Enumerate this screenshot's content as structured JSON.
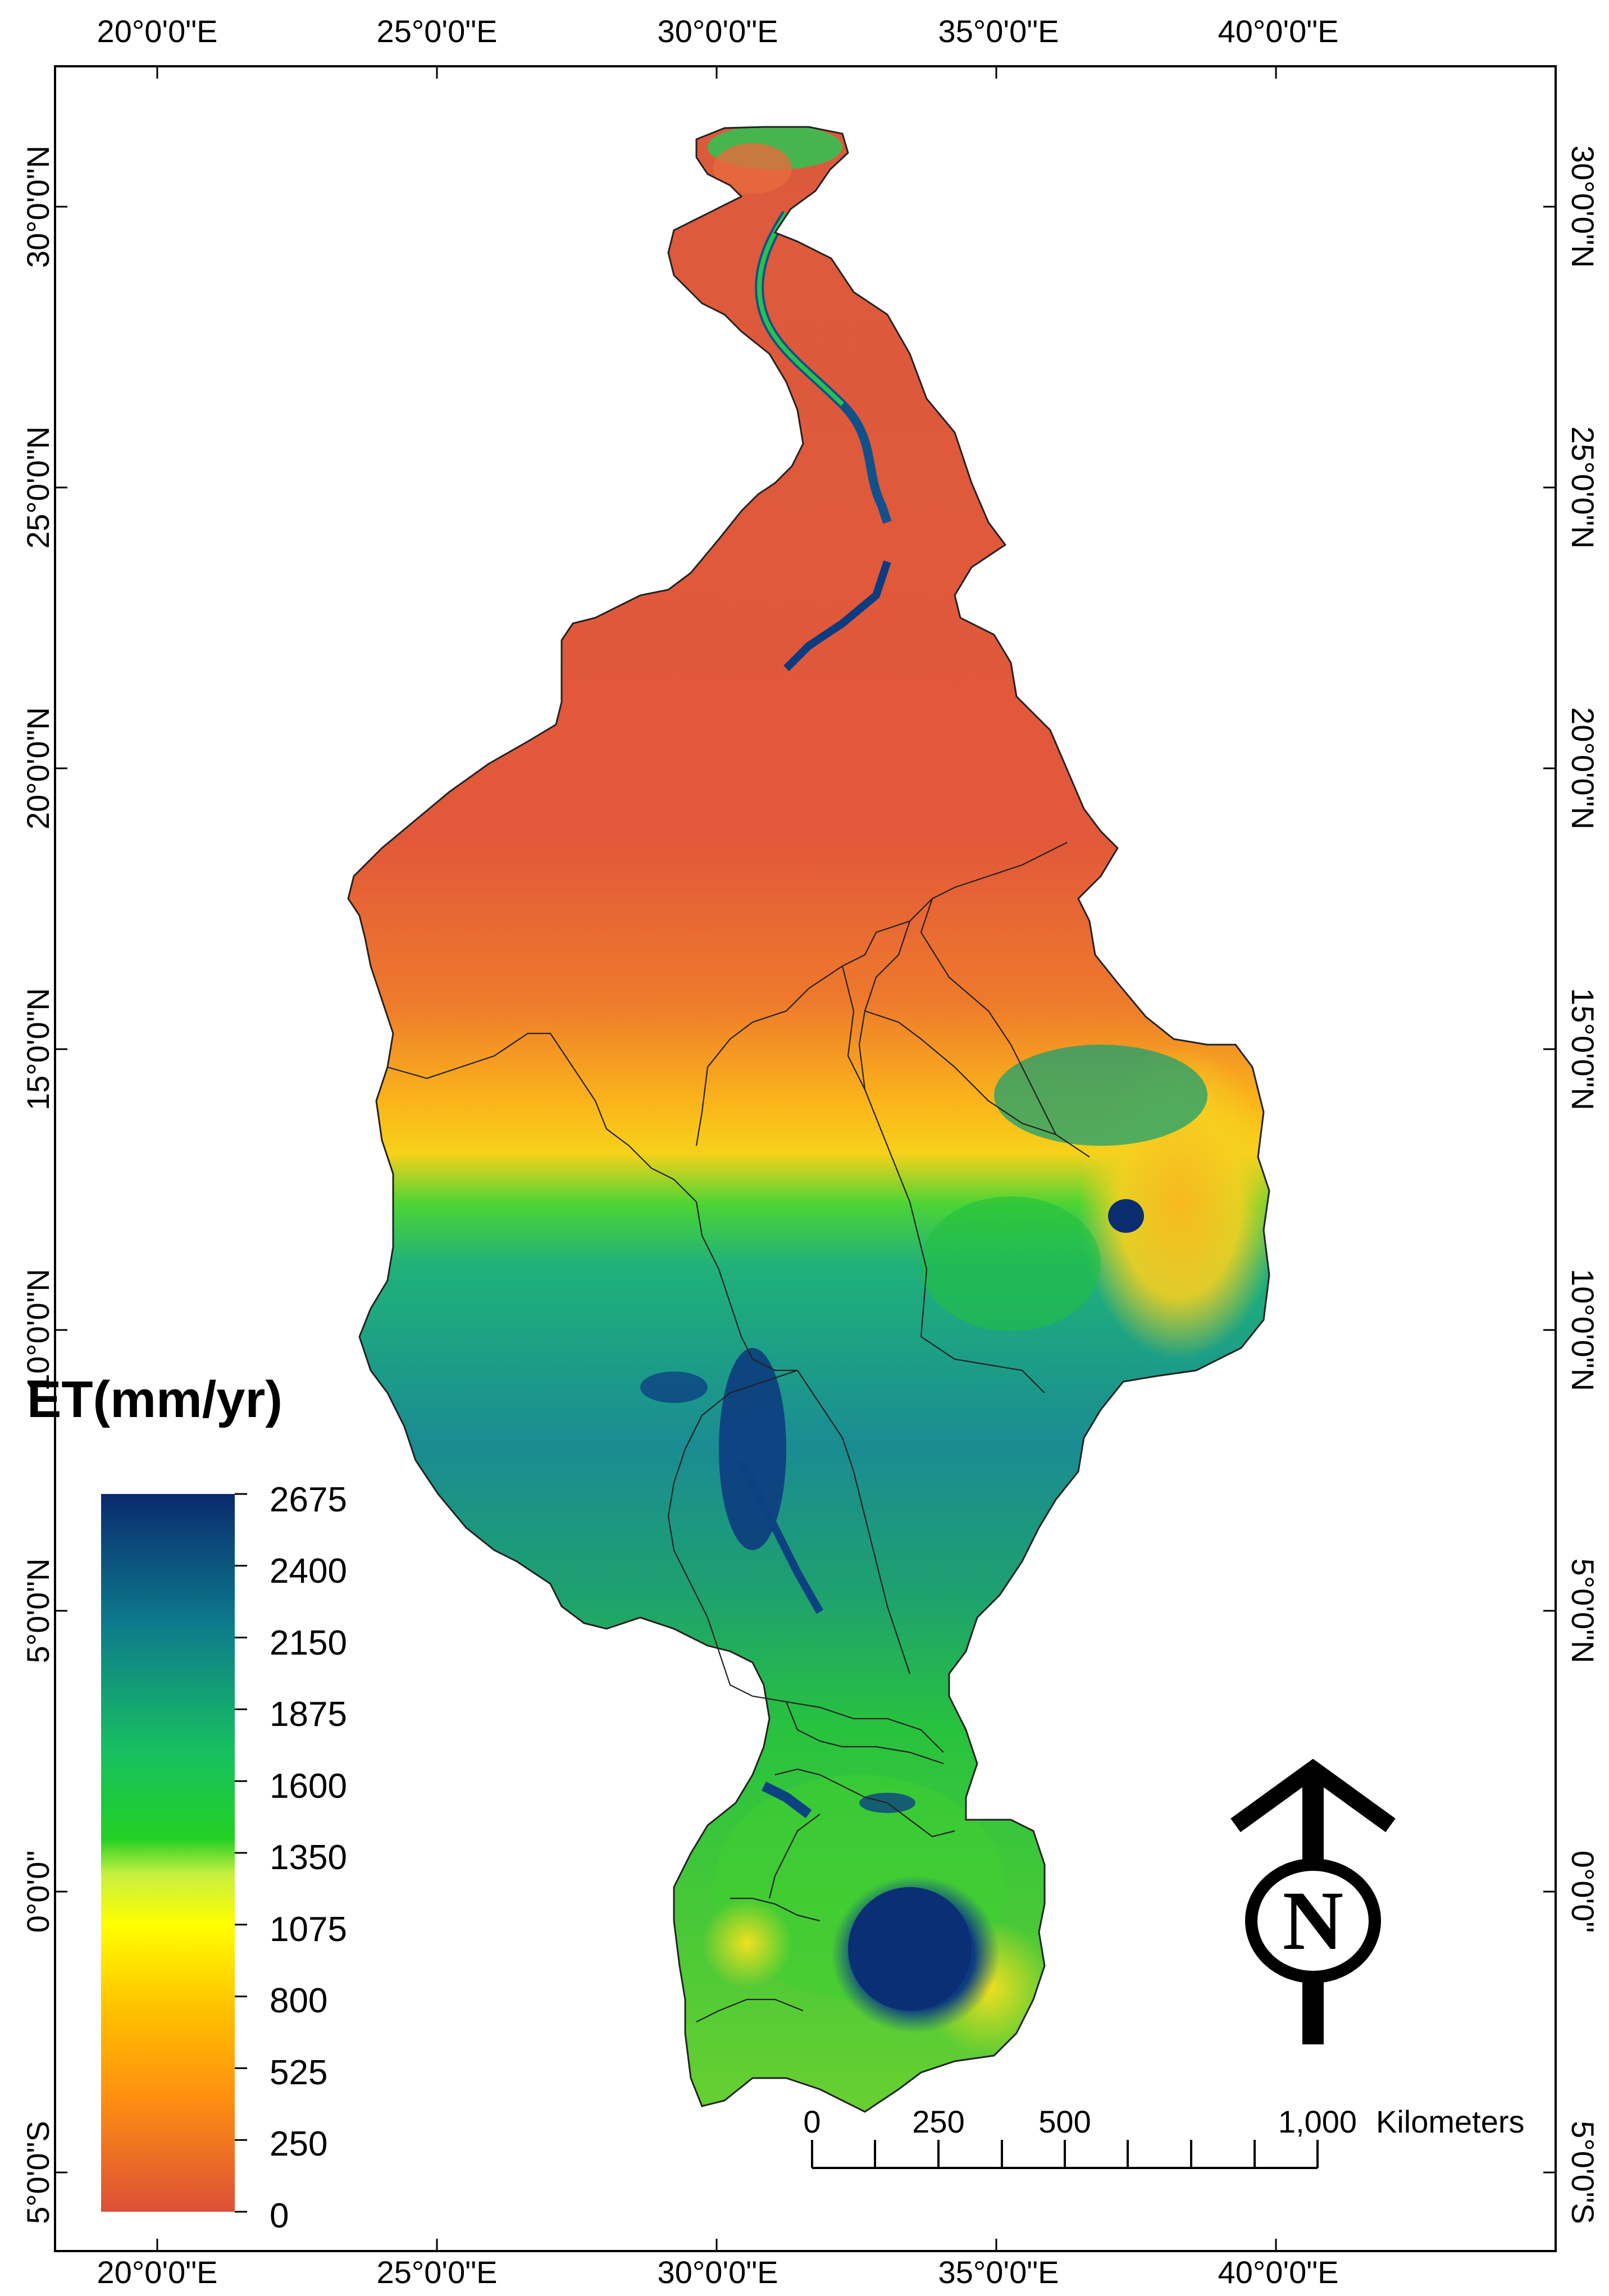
{
  "map": {
    "lon_labels": [
      "20°0'0\"E",
      "25°0'0\"E",
      "30°0'0\"E",
      "35°0'0\"E",
      "40°0'0\"E"
    ],
    "lat_labels": [
      "30°0'0\"N",
      "25°0'0\"N",
      "20°0'0\"N",
      "15°0'0\"N",
      "10°0'0\"N",
      "5°0'0\"N",
      "0°0'0\"",
      "5°0'0\"S"
    ],
    "lat_values": [
      30,
      25,
      20,
      15,
      10,
      5,
      0,
      -5
    ],
    "lon_values": [
      20,
      25,
      30,
      35,
      40
    ],
    "extent": {
      "lon_min": 18.8,
      "lon_max": 44.4,
      "lat_min": -6.2,
      "lat_max": 32.3
    }
  },
  "legend": {
    "title": "ET(mm/yr)",
    "labels": [
      "2675",
      "2400",
      "2150",
      "1875",
      "1600",
      "1350",
      "1075",
      "800",
      "525",
      "250",
      "0"
    ],
    "colors": [
      "#0a2a6e",
      "#0d6a8a",
      "#13a08c",
      "#18c060",
      "#22d024",
      "#b8f03c",
      "#ffff00",
      "#ffcc00",
      "#ffa010",
      "#f07030",
      "#dc5038"
    ]
  },
  "scale_bar": {
    "labels": [
      "0",
      "250",
      "500",
      "1,000"
    ],
    "unit": "Kilometers"
  },
  "north_arrow": {
    "letter": "N"
  }
}
